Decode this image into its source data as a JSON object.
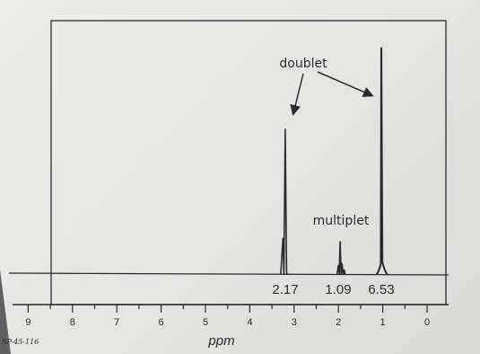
{
  "chart_data": {
    "type": "line",
    "xlabel": "ppm",
    "x_reversed": true,
    "xlim": [
      9.7,
      -0.5
    ],
    "x_ticks": [
      "9",
      "8",
      "7",
      "6",
      "5",
      "4",
      "3",
      "2",
      "1",
      "0"
    ],
    "peaks": [
      {
        "ppm": 3.2,
        "relative_height": 0.62,
        "integration": "2.17"
      },
      {
        "ppm": 1.95,
        "relative_height": 0.14,
        "integration": "1.09"
      },
      {
        "ppm": 1.02,
        "relative_height": 0.97,
        "integration": "6.53"
      }
    ],
    "annotations": [
      "doublet",
      "multiplet"
    ],
    "footer_code": "SP-45-116",
    "grid": false,
    "colors": {
      "ink": "#2a2a2a",
      "paper": "#e8e9e7",
      "background": "#5f6163"
    }
  }
}
